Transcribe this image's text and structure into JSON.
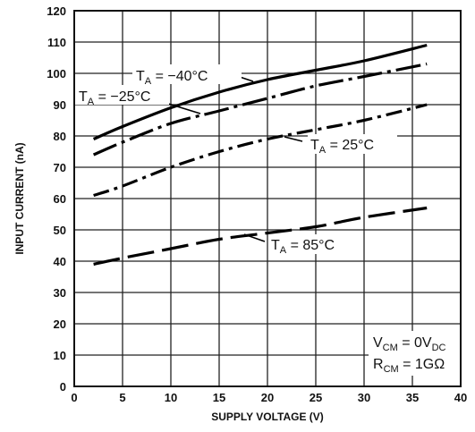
{
  "chart_data": {
    "type": "line",
    "title": "",
    "xlabel": "SUPPLY VOLTAGE (V)",
    "ylabel": "INPUT CURRENT (nA)",
    "xlim": [
      0,
      40
    ],
    "ylim": [
      0,
      120
    ],
    "xticks": [
      0,
      5,
      10,
      15,
      20,
      25,
      30,
      35,
      40
    ],
    "yticks": [
      0,
      10,
      20,
      30,
      40,
      50,
      60,
      70,
      80,
      90,
      100,
      110,
      120
    ],
    "grid": true,
    "legend": "none",
    "series": [
      {
        "name": "T_A = −40°C",
        "style": "solid",
        "points": [
          [
            2,
            79
          ],
          [
            5,
            83
          ],
          [
            10,
            89
          ],
          [
            15,
            94
          ],
          [
            20,
            98
          ],
          [
            25,
            101
          ],
          [
            30,
            104
          ],
          [
            36.5,
            109
          ]
        ]
      },
      {
        "name": "T_A = −25°C",
        "style": "dash-dot-long",
        "points": [
          [
            2,
            74
          ],
          [
            5,
            78
          ],
          [
            10,
            84
          ],
          [
            15,
            88
          ],
          [
            20,
            92
          ],
          [
            25,
            96
          ],
          [
            30,
            99
          ],
          [
            36.5,
            103
          ]
        ]
      },
      {
        "name": "T_A = 25°C",
        "style": "dash-dot",
        "points": [
          [
            2,
            61
          ],
          [
            5,
            64
          ],
          [
            10,
            70
          ],
          [
            15,
            75
          ],
          [
            20,
            79
          ],
          [
            25,
            82
          ],
          [
            30,
            85
          ],
          [
            36.5,
            90
          ]
        ]
      },
      {
        "name": "T_A = 85°C",
        "style": "long-dash",
        "points": [
          [
            2,
            39
          ],
          [
            5,
            41
          ],
          [
            10,
            44
          ],
          [
            15,
            47
          ],
          [
            20,
            49
          ],
          [
            25,
            51
          ],
          [
            30,
            54
          ],
          [
            36.5,
            57
          ]
        ]
      }
    ],
    "annotations": [
      {
        "main": "T",
        "sub": "A",
        "rest": " = −40°C"
      },
      {
        "main": "T",
        "sub": "A",
        "rest": " = −25°C"
      },
      {
        "main": "T",
        "sub": "A",
        "rest": " = 25°C"
      },
      {
        "main": "T",
        "sub": "A",
        "rest": " = 85°C"
      },
      {
        "main": "V",
        "sub": "CM",
        "rest": " = 0V",
        "sub2": "DC"
      },
      {
        "main": "R",
        "sub": "CM",
        "rest": " = 1GΩ"
      }
    ]
  }
}
